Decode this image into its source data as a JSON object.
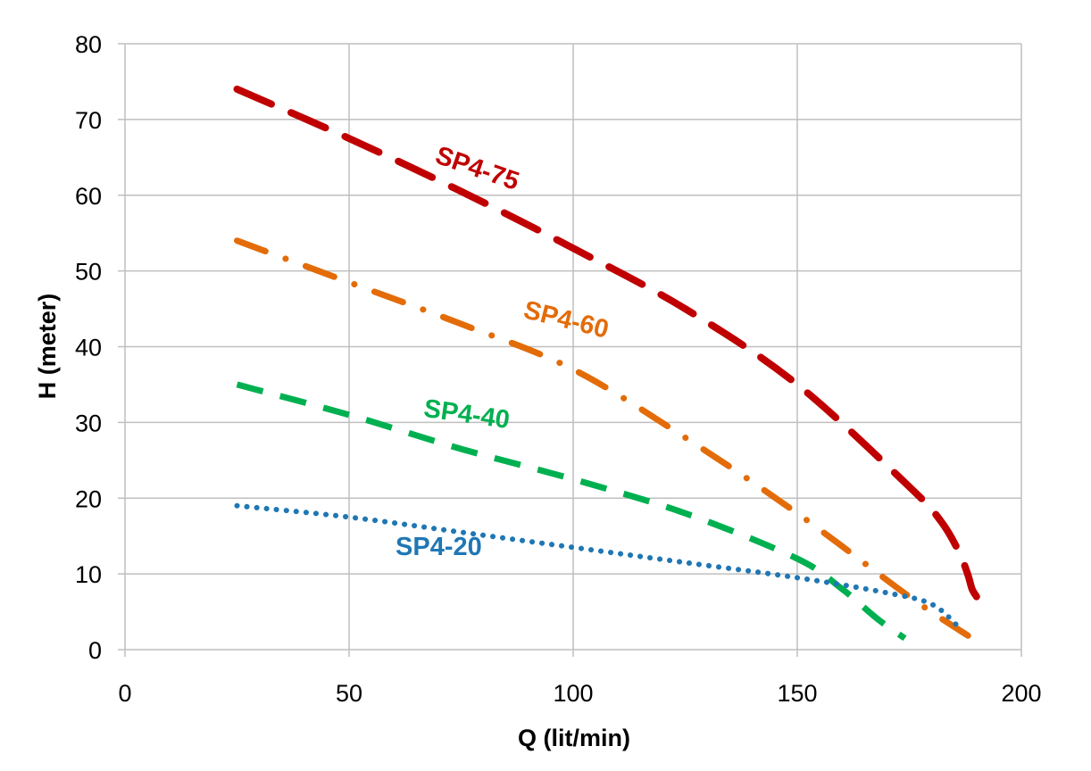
{
  "chart_data": {
    "type": "line",
    "xlabel": "Q (lit/min)",
    "ylabel": "H (meter)",
    "xlim": [
      0,
      200
    ],
    "ylim": [
      0,
      80
    ],
    "x_ticks": [
      "0",
      "50",
      "100",
      "150",
      "200"
    ],
    "y_ticks": [
      "0",
      "10",
      "20",
      "30",
      "40",
      "50",
      "60",
      "70",
      "80"
    ],
    "grid": true,
    "legend": "none",
    "series": [
      {
        "name": "SP4-75",
        "color": "#c00000",
        "dash": "long-dash",
        "x": [
          25,
          50,
          75,
          100,
          125,
          150,
          175,
          182,
          186,
          188,
          189,
          190
        ],
        "y": [
          74,
          67.5,
          60.5,
          53,
          45,
          35,
          21.5,
          17,
          13,
          10,
          8,
          7
        ]
      },
      {
        "name": "SP4-60",
        "color": "#e36c09",
        "dash": "dash-dot",
        "x": [
          25,
          50,
          75,
          100,
          125,
          150,
          175,
          189
        ],
        "y": [
          54,
          48.5,
          43,
          37,
          28,
          18,
          7,
          1.5
        ]
      },
      {
        "name": "SP4-40",
        "color": "#00b050",
        "dash": "dash",
        "x": [
          25,
          50,
          75,
          100,
          125,
          150,
          160,
          168,
          174
        ],
        "y": [
          35,
          31,
          26.5,
          22.5,
          18,
          12,
          8,
          4,
          1.5
        ]
      },
      {
        "name": "SP4-20",
        "color": "#1f77b4",
        "dash": "dot",
        "x": [
          25,
          50,
          75,
          100,
          125,
          150,
          170,
          180,
          186
        ],
        "y": [
          19,
          17.5,
          15.5,
          13.5,
          11.5,
          9.5,
          7.5,
          6,
          3
        ]
      }
    ]
  }
}
